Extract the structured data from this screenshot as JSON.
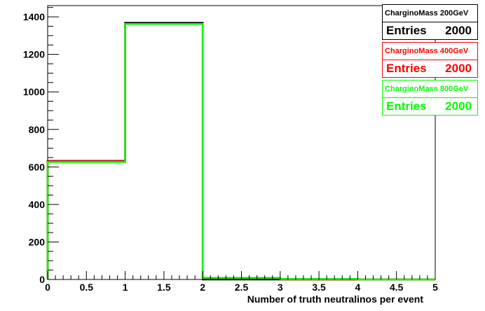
{
  "chart_data": {
    "type": "histogram",
    "xlabel": "Number of truth neutralinos per event",
    "ylabel": "",
    "xlim": [
      0,
      5
    ],
    "ylim": [
      0,
      1460
    ],
    "x_ticks": [
      "0",
      "0.5",
      "1",
      "1.5",
      "2",
      "2.5",
      "3",
      "3.5",
      "4",
      "4.5",
      "5"
    ],
    "y_ticks": [
      "0",
      "200",
      "400",
      "600",
      "800",
      "1000",
      "1200",
      "1400"
    ],
    "bin_edges": [
      0,
      1,
      2,
      3,
      4,
      5
    ],
    "series": [
      {
        "name": "CharginoMass 200GeV",
        "color": "#000000",
        "values": [
          632,
          1368,
          0,
          0,
          0
        ],
        "entries_label": "Entries",
        "entries": "2000"
      },
      {
        "name": "CharginoMass 400GeV",
        "color": "#ff0000",
        "values": [
          630,
          1362,
          8,
          0,
          0
        ],
        "entries_label": "Entries",
        "entries": "2000"
      },
      {
        "name": "CharginoMass 800GeV",
        "color": "#00ff00",
        "values": [
          626,
          1362,
          9,
          3,
          0
        ],
        "entries_label": "Entries",
        "entries": "2000"
      }
    ]
  }
}
